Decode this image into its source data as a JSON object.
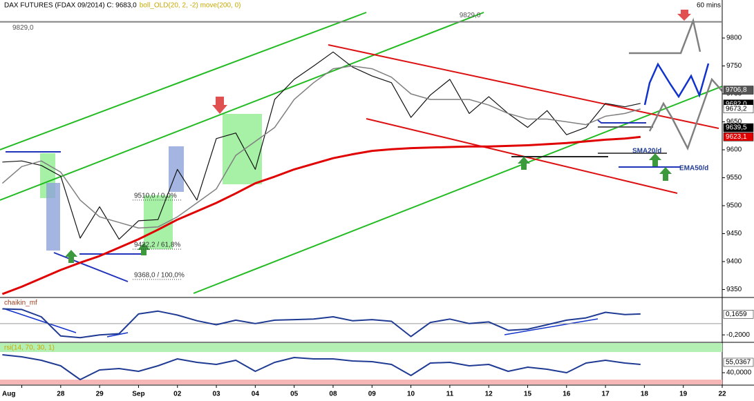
{
  "chart_data": [
    {
      "type": "line",
      "title": "DAX FUTURES (FDAX 09/2014) C: 9683,0",
      "subtitle": "boll_OLD(20, 2, -2) move(200, 0)",
      "timeframe": "60 mins",
      "x": [
        -0.5,
        0,
        0.5,
        1,
        1.5,
        2,
        2.5,
        3,
        3.5,
        4,
        4.5,
        5,
        5.5,
        6,
        6.5,
        7,
        7.5,
        8,
        8.5,
        9,
        9.5,
        10,
        10.5,
        11,
        11.5,
        12,
        12.5,
        13,
        13.5,
        14,
        14.5,
        15,
        15.5,
        15.9
      ],
      "xlim": [
        -0.56,
        18
      ],
      "xticks": [
        {
          "value": 0,
          "label": "Aug"
        },
        {
          "value": 1,
          "label": "28"
        },
        {
          "value": 2,
          "label": "29"
        },
        {
          "value": 3,
          "label": "Sep"
        },
        {
          "value": 4,
          "label": "02"
        },
        {
          "value": 5,
          "label": "03"
        },
        {
          "value": 6,
          "label": "04"
        },
        {
          "value": 7,
          "label": "05"
        },
        {
          "value": 8,
          "label": "08"
        },
        {
          "value": 9,
          "label": "09"
        },
        {
          "value": 10,
          "label": "10"
        },
        {
          "value": 11,
          "label": "11"
        },
        {
          "value": 12,
          "label": "12"
        },
        {
          "value": 13,
          "label": "15"
        },
        {
          "value": 14,
          "label": "16"
        },
        {
          "value": 15,
          "label": "17"
        },
        {
          "value": 16,
          "label": "18"
        },
        {
          "value": 17,
          "label": "19"
        },
        {
          "value": 18,
          "label": "22"
        }
      ],
      "ylim": [
        9337,
        9868
      ],
      "yticks": [
        9350,
        9400,
        9450,
        9500,
        9550,
        9600,
        9650,
        9700,
        9750,
        9800
      ],
      "series": [
        {
          "color": "#111111",
          "width": 1.2,
          "values": [
            9578,
            9580,
            9572,
            9553,
            9442,
            9498,
            9440,
            9473,
            9475,
            9565,
            9510,
            9620,
            9630,
            9565,
            9690,
            9726,
            9750,
            9775,
            9748,
            9732,
            9720,
            9658,
            9698,
            9726,
            9665,
            9695,
            9665,
            9640,
            9670,
            9627,
            9640,
            9683,
            9677,
            9683
          ]
        },
        {
          "color": "#7f7f7f",
          "width": 1.5,
          "values": [
            9540,
            9570,
            9580,
            9560,
            9510,
            9480,
            9470,
            9460,
            9462,
            9480,
            9505,
            9530,
            9590,
            9615,
            9640,
            9690,
            9720,
            9745,
            9750,
            9745,
            9730,
            9700,
            9690,
            9690,
            9690,
            9680,
            9665,
            9655,
            9655,
            9650,
            9645,
            9660,
            9665,
            9673
          ]
        },
        {
          "color": "#e00000",
          "width": 3,
          "values": [
            9342,
            9355,
            9370,
            9385,
            9398,
            9410,
            9425,
            9440,
            9457,
            9475,
            9490,
            9505,
            9522,
            9540,
            9552,
            9565,
            9575,
            9585,
            9592,
            9598,
            9601,
            9603,
            9604,
            9605,
            9606,
            9606,
            9607,
            9608,
            9610,
            9612,
            9615,
            9618,
            9620,
            9623
          ]
        }
      ],
      "level_line": {
        "value": 9829,
        "label": "9829,0"
      },
      "fib_levels": [
        {
          "value": 9510,
          "label": "9510,0 / 0,0%"
        },
        {
          "value": 9422.2,
          "label": "9422,2 / 61,8%"
        },
        {
          "value": 9368,
          "label": "9368,0 / 100,0%"
        }
      ],
      "price_labels": [
        {
          "value": 9706.8,
          "label": "9706,8",
          "bg": "#555555",
          "fg": "#ffffff"
        },
        {
          "value": 9682,
          "label": "9682,0",
          "bg": "#000000",
          "fg": "#ffffff"
        },
        {
          "value": 9673.2,
          "label": "9673,2",
          "bg": "#ffffff",
          "fg": "#000000"
        },
        {
          "value": 9639.5,
          "label": "9639,5",
          "bg": "#000000",
          "fg": "#ffffff"
        },
        {
          "value": 9623.1,
          "label": "9623,1",
          "bg": "#e00000",
          "fg": "#ffffff"
        }
      ],
      "annotations": [
        "SMA20/d",
        "EMA50/d"
      ]
    },
    {
      "type": "line",
      "title": "chaikin_mf",
      "x": [
        -0.5,
        0,
        0.5,
        1,
        1.5,
        2,
        2.5,
        3,
        3.5,
        4,
        4.5,
        5,
        5.5,
        6,
        6.5,
        7,
        7.5,
        8,
        8.5,
        9,
        9.5,
        10,
        10.5,
        11,
        11.5,
        12,
        12.5,
        13,
        13.5,
        14,
        14.5,
        15,
        15.5,
        15.9
      ],
      "xlim": [
        -0.56,
        18
      ],
      "ylim": [
        -0.32,
        0.45
      ],
      "yticks": [
        {
          "value": -0.2,
          "label": "-0,2000"
        }
      ],
      "zero_line": true,
      "series": [
        {
          "color": "#1f3a93",
          "width": 2,
          "values": [
            0.26,
            0.25,
            0.12,
            -0.22,
            -0.25,
            -0.2,
            -0.18,
            0.17,
            0.22,
            0.15,
            0.05,
            -0.02,
            0.06,
            0,
            0.06,
            0.07,
            0.08,
            0.12,
            0.05,
            0.07,
            0.04,
            -0.23,
            0.02,
            0.08,
            0,
            0.03,
            -0.12,
            -0.1,
            -0.02,
            0.06,
            0.1,
            0.2,
            0.16,
            0.17
          ]
        }
      ],
      "price_labels": [
        {
          "value": 0.1659,
          "label": "0,1659",
          "bg": "#ffffff",
          "fg": "#000000"
        }
      ]
    },
    {
      "type": "line",
      "title": "rsi(14, 70, 30, 1)",
      "x": [
        -0.5,
        0,
        0.5,
        1,
        1.5,
        2,
        2.5,
        3,
        3.5,
        4,
        4.5,
        5,
        5.5,
        6,
        6.5,
        7,
        7.5,
        8,
        8.5,
        9,
        9.5,
        10,
        10.5,
        11,
        11.5,
        12,
        12.5,
        13,
        13.5,
        14,
        14.5,
        15,
        15.5,
        15.9
      ],
      "xlim": [
        -0.56,
        18
      ],
      "ylim": [
        23,
        83
      ],
      "yticks": [
        {
          "value": 40,
          "label": "40,0000"
        }
      ],
      "bands": [
        70,
        30
      ],
      "series": [
        {
          "color": "#1f3a93",
          "width": 2,
          "values": [
            66,
            63,
            58,
            50,
            30,
            44,
            46,
            42,
            50,
            60,
            55,
            52,
            58,
            42,
            55,
            62,
            60,
            60,
            57,
            56,
            52,
            36,
            54,
            55,
            50,
            52,
            42,
            48,
            45,
            40,
            54,
            58,
            54,
            52
          ]
        }
      ],
      "price_labels": [
        {
          "value": 55.0367,
          "label": "55,0367",
          "bg": "#ffffff",
          "fg": "#000000"
        }
      ]
    }
  ]
}
